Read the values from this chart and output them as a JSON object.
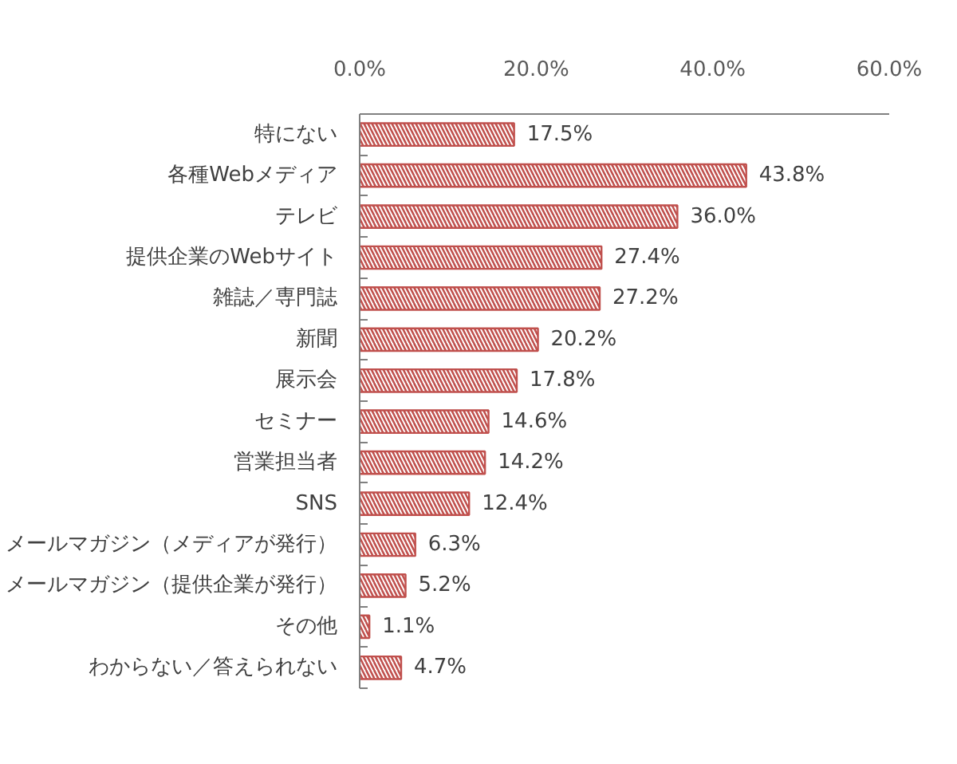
{
  "chart_data": {
    "type": "bar",
    "orientation": "horizontal",
    "categories": [
      "特にない",
      "各種Webメディア",
      "テレビ",
      "提供企業のWebサイト",
      "雑誌／専門誌",
      "新聞",
      "展示会",
      "セミナー",
      "営業担当者",
      "SNS",
      "メールマガジン（メディアが発行）",
      "メールマガジン（提供企業が発行）",
      "その他",
      "わからない／答えられない"
    ],
    "values": [
      17.5,
      43.8,
      36.0,
      27.4,
      27.2,
      20.2,
      17.8,
      14.6,
      14.2,
      12.4,
      6.3,
      5.2,
      1.1,
      4.7
    ],
    "value_labels": [
      "17.5%",
      "43.8%",
      "36.0%",
      "27.4%",
      "27.2%",
      "20.2%",
      "17.8%",
      "14.6%",
      "14.2%",
      "12.4%",
      "6.3%",
      "5.2%",
      "1.1%",
      "4.7%"
    ],
    "color": "#c0504d",
    "xlim": [
      0,
      60
    ],
    "xticks": [
      {
        "value": 0,
        "label": "0.0%"
      },
      {
        "value": 20,
        "label": "20.0%"
      },
      {
        "value": 40,
        "label": "40.0%"
      },
      {
        "value": 60,
        "label": "60.0%"
      }
    ],
    "grid": false
  }
}
